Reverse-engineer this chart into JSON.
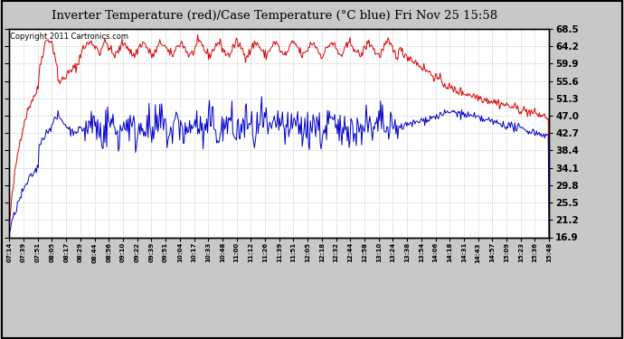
{
  "title": "Inverter Temperature (red)/Case Temperature (°C blue) Fri Nov 25 15:58",
  "copyright": "Copyright 2011 Cartronics.com",
  "yticks": [
    16.9,
    21.2,
    25.5,
    29.8,
    34.1,
    38.4,
    42.7,
    47.0,
    51.3,
    55.6,
    59.9,
    64.2,
    68.5
  ],
  "ymin": 16.9,
  "ymax": 68.5,
  "xtick_labels": [
    "07:14",
    "07:39",
    "07:51",
    "08:05",
    "08:17",
    "08:29",
    "08:44",
    "08:56",
    "09:10",
    "09:22",
    "09:39",
    "09:51",
    "10:04",
    "10:17",
    "10:33",
    "10:48",
    "11:00",
    "11:12",
    "11:26",
    "11:39",
    "11:51",
    "12:05",
    "12:18",
    "12:32",
    "12:44",
    "12:58",
    "13:10",
    "13:24",
    "13:38",
    "13:54",
    "14:06",
    "14:18",
    "14:31",
    "14:43",
    "14:57",
    "15:09",
    "15:23",
    "15:36",
    "15:48"
  ],
  "bg_color": "#c8c8c8",
  "plot_bg_color": "#ffffff",
  "grid_color": "#aaaaaa",
  "line_red_color": "#dd0000",
  "line_blue_color": "#0000cc",
  "title_fontsize": 9.5,
  "copyright_fontsize": 6
}
